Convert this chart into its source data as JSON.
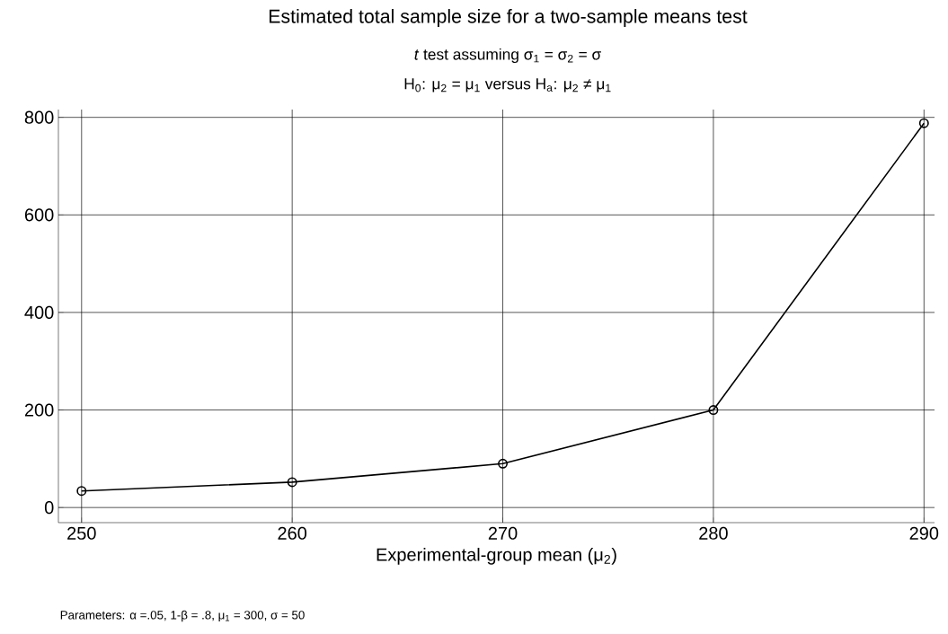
{
  "chart_data": {
    "type": "line",
    "title": "Estimated total sample size for a two-sample means test",
    "subtitle": "*t* test assuming σ$_{1}$ = σ$_{2}$ = σ",
    "annotations": [
      "H$_{0}$: μ$_{2}$ = μ$_{1}$  versus  H$_{a}$: μ$_{2}$ ≠ μ$_{1}$",
      "Parameters: α =.05, 1-β = .8, μ$_{1}$ = 300, σ = 50"
    ],
    "xlabel": "Experimental-group mean (μ$_{2}$)",
    "x": [
      250,
      260,
      270,
      280,
      290
    ],
    "series": [
      {
        "color": "#000000",
        "values": [
          34,
          52,
          90,
          200,
          788
        ]
      }
    ],
    "xlim": [
      248.9,
      290.5
    ],
    "ylim": [
      -31,
      816
    ],
    "xticks": [
      250,
      260,
      270,
      280,
      290
    ],
    "yticks": [
      0,
      200,
      400,
      600,
      800
    ],
    "grid": true,
    "marker": "circle",
    "line_style": "solid"
  }
}
